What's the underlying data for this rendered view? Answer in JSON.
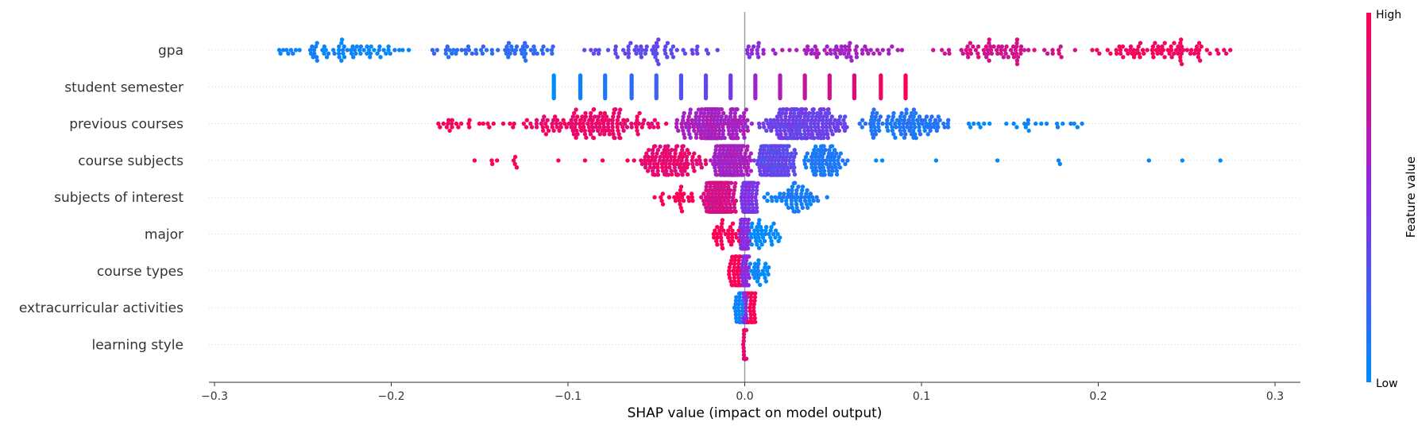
{
  "chart_data": {
    "type": "scatter",
    "subtype": "shap-beeswarm-summary",
    "title": "",
    "xlabel": "SHAP value (impact on model output)",
    "xlim": [
      -0.302,
      0.312
    ],
    "xticks": [
      -0.3,
      -0.2,
      -0.1,
      0.0,
      0.1,
      0.2,
      0.3
    ],
    "xtick_labels": [
      "−0.3",
      "−0.2",
      "−0.1",
      "0.0",
      "0.1",
      "0.2",
      "0.3"
    ],
    "colorbar": {
      "label": "Feature value",
      "high_label": "High",
      "low_label": "Low",
      "low_color": "#008bfb",
      "high_color": "#ff0051"
    },
    "grid": "dotted horizontal row guides",
    "features": [
      {
        "name": "gpa",
        "min": -0.275,
        "max": 0.282,
        "note": "continuous spread; low feature values (blue) at negative SHAP, high values (red) at positive SHAP",
        "groups": [
          {
            "range": [
              -0.275,
              -0.18
            ],
            "count": 70,
            "value": 0.03
          },
          {
            "range": [
              -0.18,
              -0.1
            ],
            "count": 60,
            "value": 0.17
          },
          {
            "range": [
              -0.1,
              -0.01
            ],
            "count": 60,
            "value": 0.35
          },
          {
            "range": [
              0.0,
              0.008
            ],
            "count": 12,
            "value": 0.5
          },
          {
            "range": [
              0.01,
              0.1
            ],
            "count": 60,
            "value": 0.62
          },
          {
            "range": [
              0.1,
              0.19
            ],
            "count": 70,
            "value": 0.8
          },
          {
            "range": [
              0.19,
              0.282
            ],
            "count": 80,
            "value": 0.96
          }
        ]
      },
      {
        "name": "student semester",
        "note": "discrete vertical clusters, one per semester value",
        "clusters": [
          {
            "x": -0.108,
            "value": 0.0
          },
          {
            "x": -0.093,
            "value": 0.05
          },
          {
            "x": -0.079,
            "value": 0.1
          },
          {
            "x": -0.064,
            "value": 0.16
          },
          {
            "x": -0.05,
            "value": 0.22
          },
          {
            "x": -0.036,
            "value": 0.29
          },
          {
            "x": -0.022,
            "value": 0.35
          },
          {
            "x": -0.008,
            "value": 0.42
          },
          {
            "x": 0.006,
            "value": 0.58
          },
          {
            "x": 0.02,
            "value": 0.66
          },
          {
            "x": 0.034,
            "value": 0.74
          },
          {
            "x": 0.048,
            "value": 0.8
          },
          {
            "x": 0.062,
            "value": 0.87
          },
          {
            "x": 0.077,
            "value": 0.93
          },
          {
            "x": 0.091,
            "value": 1.0
          }
        ]
      },
      {
        "name": "previous courses",
        "min": -0.174,
        "max": 0.191,
        "note": "high feature values (red) at negative SHAP, low values (blue) at positive SHAP",
        "groups": [
          {
            "range": [
              -0.174,
              -0.13
            ],
            "count": 25,
            "value": 1.0
          },
          {
            "range": [
              -0.13,
              -0.04
            ],
            "count": 150,
            "value": 0.92
          },
          {
            "range": [
              -0.04,
              0.005
            ],
            "count": 200,
            "value": 0.62
          },
          {
            "range": [
              0.005,
              0.06
            ],
            "count": 200,
            "value": 0.38
          },
          {
            "range": [
              0.06,
              0.12
            ],
            "count": 110,
            "value": 0.12
          },
          {
            "range": [
              0.12,
              0.191
            ],
            "count": 25,
            "value": 0.02
          }
        ]
      },
      {
        "name": "course subjects",
        "min": -0.155,
        "max": 0.284,
        "note": "high feature values (red) at negative SHAP, low values (blue) at positive SHAP; one outlier near 0.284",
        "groups": [
          {
            "range": [
              -0.155,
              -0.065
            ],
            "count": 12,
            "value": 1.0
          },
          {
            "range": [
              -0.065,
              -0.02
            ],
            "count": 120,
            "value": 0.9
          },
          {
            "range": [
              -0.02,
              0.005
            ],
            "count": 180,
            "value": 0.62
          },
          {
            "range": [
              0.005,
              0.03
            ],
            "count": 170,
            "value": 0.35
          },
          {
            "range": [
              0.03,
              0.06
            ],
            "count": 80,
            "value": 0.1
          },
          {
            "range": [
              0.07,
              0.284
            ],
            "count": 9,
            "value": 0.0
          }
        ]
      },
      {
        "name": "subjects of interest",
        "min": -0.052,
        "max": 0.049,
        "note": "high values (red) at negative SHAP, low values (blue) at positive SHAP",
        "groups": [
          {
            "range": [
              -0.052,
              -0.025
            ],
            "count": 25,
            "value": 1.0
          },
          {
            "range": [
              -0.025,
              -0.003
            ],
            "count": 170,
            "value": 0.82
          },
          {
            "range": [
              -0.003,
              0.008
            ],
            "count": 150,
            "value": 0.45
          },
          {
            "range": [
              0.008,
              0.049
            ],
            "count": 60,
            "value": 0.08
          }
        ]
      },
      {
        "name": "major",
        "min": -0.018,
        "max": 0.02,
        "groups": [
          {
            "range": [
              -0.018,
              -0.003
            ],
            "count": 35,
            "value": 1.0
          },
          {
            "range": [
              -0.003,
              0.003
            ],
            "count": 70,
            "value": 0.5
          },
          {
            "range": [
              0.003,
              0.02
            ],
            "count": 40,
            "value": 0.0
          }
        ]
      },
      {
        "name": "course types",
        "min": -0.009,
        "max": 0.014,
        "groups": [
          {
            "range": [
              -0.009,
              -0.002
            ],
            "count": 40,
            "value": 1.0
          },
          {
            "range": [
              -0.002,
              0.003
            ],
            "count": 80,
            "value": 0.5
          },
          {
            "range": [
              0.003,
              0.014
            ],
            "count": 25,
            "value": 0.0
          }
        ]
      },
      {
        "name": "extracurricular activities",
        "min": -0.006,
        "max": 0.006,
        "groups": [
          {
            "range": [
              -0.006,
              -0.001
            ],
            "count": 30,
            "value": 0.05
          },
          {
            "range": [
              -0.001,
              0.002
            ],
            "count": 80,
            "value": 0.5
          },
          {
            "range": [
              0.002,
              0.006
            ],
            "count": 30,
            "value": 0.98
          }
        ]
      },
      {
        "name": "learning style",
        "min": -0.001,
        "max": 0.001,
        "groups": [
          {
            "range": [
              -0.001,
              0.001
            ],
            "count": 60,
            "value": 0.9
          }
        ]
      }
    ]
  }
}
